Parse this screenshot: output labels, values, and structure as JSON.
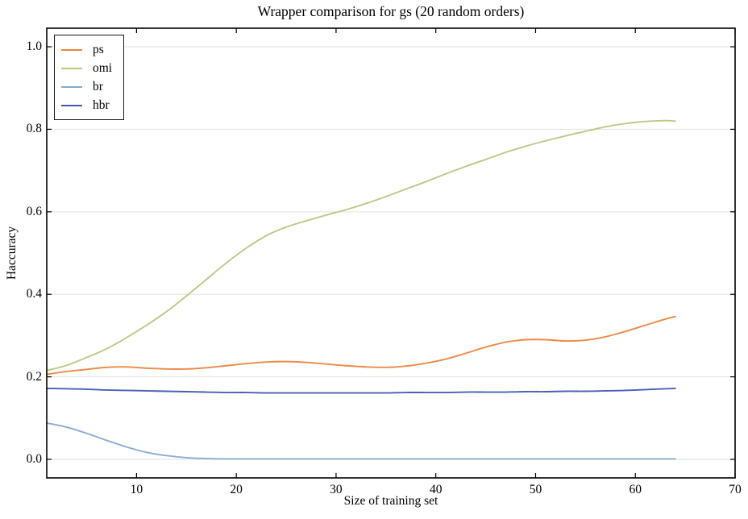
{
  "colors": {
    "background": "#ffffff",
    "frame": "#000000",
    "grid": "#e5e5e5",
    "tick": "#000000"
  },
  "chart_data": {
    "type": "line",
    "title": "Wrapper comparison for gs (20 random orders)",
    "xlabel": "Size of training set",
    "ylabel": "Haccuracy",
    "xlim": [
      1,
      70
    ],
    "ylim": [
      -0.045,
      1.045
    ],
    "xticks": [
      10,
      20,
      30,
      40,
      50,
      60,
      70
    ],
    "ytick_labels": [
      "0.0",
      "0.2",
      "0.4",
      "0.6",
      "0.8",
      "1.0"
    ],
    "grid": "horizontal",
    "legend_position": "upper left",
    "x": [
      1,
      3,
      5,
      7,
      9,
      11,
      13,
      15,
      17,
      19,
      21,
      23,
      25,
      27,
      29,
      31,
      33,
      35,
      37,
      39,
      41,
      43,
      45,
      47,
      49,
      51,
      53,
      55,
      57,
      59,
      61,
      63,
      64
    ],
    "series": [
      {
        "name": "ps",
        "color": "#EB843E",
        "values": [
          0.206,
          0.213,
          0.218,
          0.223,
          0.224,
          0.221,
          0.219,
          0.219,
          0.222,
          0.227,
          0.232,
          0.236,
          0.237,
          0.235,
          0.231,
          0.227,
          0.224,
          0.223,
          0.226,
          0.233,
          0.243,
          0.257,
          0.272,
          0.284,
          0.29,
          0.29,
          0.287,
          0.289,
          0.297,
          0.31,
          0.325,
          0.34,
          0.346
        ]
      },
      {
        "name": "omi",
        "color": "#BCC581",
        "values": [
          0.215,
          0.228,
          0.247,
          0.268,
          0.295,
          0.325,
          0.358,
          0.396,
          0.436,
          0.476,
          0.512,
          0.542,
          0.563,
          0.578,
          0.592,
          0.605,
          0.62,
          0.637,
          0.655,
          0.673,
          0.692,
          0.71,
          0.727,
          0.744,
          0.759,
          0.772,
          0.784,
          0.795,
          0.806,
          0.814,
          0.819,
          0.821,
          0.82
        ]
      },
      {
        "name": "br",
        "color": "#85AACF",
        "values": [
          0.088,
          0.078,
          0.063,
          0.046,
          0.03,
          0.017,
          0.009,
          0.004,
          0.002,
          0.001,
          0.001,
          0.001,
          0.001,
          0.001,
          0.001,
          0.001,
          0.001,
          0.001,
          0.001,
          0.001,
          0.001,
          0.001,
          0.001,
          0.001,
          0.001,
          0.001,
          0.001,
          0.001,
          0.001,
          0.001,
          0.001,
          0.001,
          0.001
        ]
      },
      {
        "name": "hbr",
        "color": "#4156B5",
        "values": [
          0.172,
          0.171,
          0.17,
          0.168,
          0.167,
          0.166,
          0.165,
          0.164,
          0.163,
          0.162,
          0.162,
          0.161,
          0.161,
          0.161,
          0.161,
          0.161,
          0.161,
          0.161,
          0.162,
          0.162,
          0.162,
          0.163,
          0.163,
          0.163,
          0.164,
          0.164,
          0.165,
          0.165,
          0.166,
          0.167,
          0.169,
          0.171,
          0.172
        ]
      }
    ]
  }
}
